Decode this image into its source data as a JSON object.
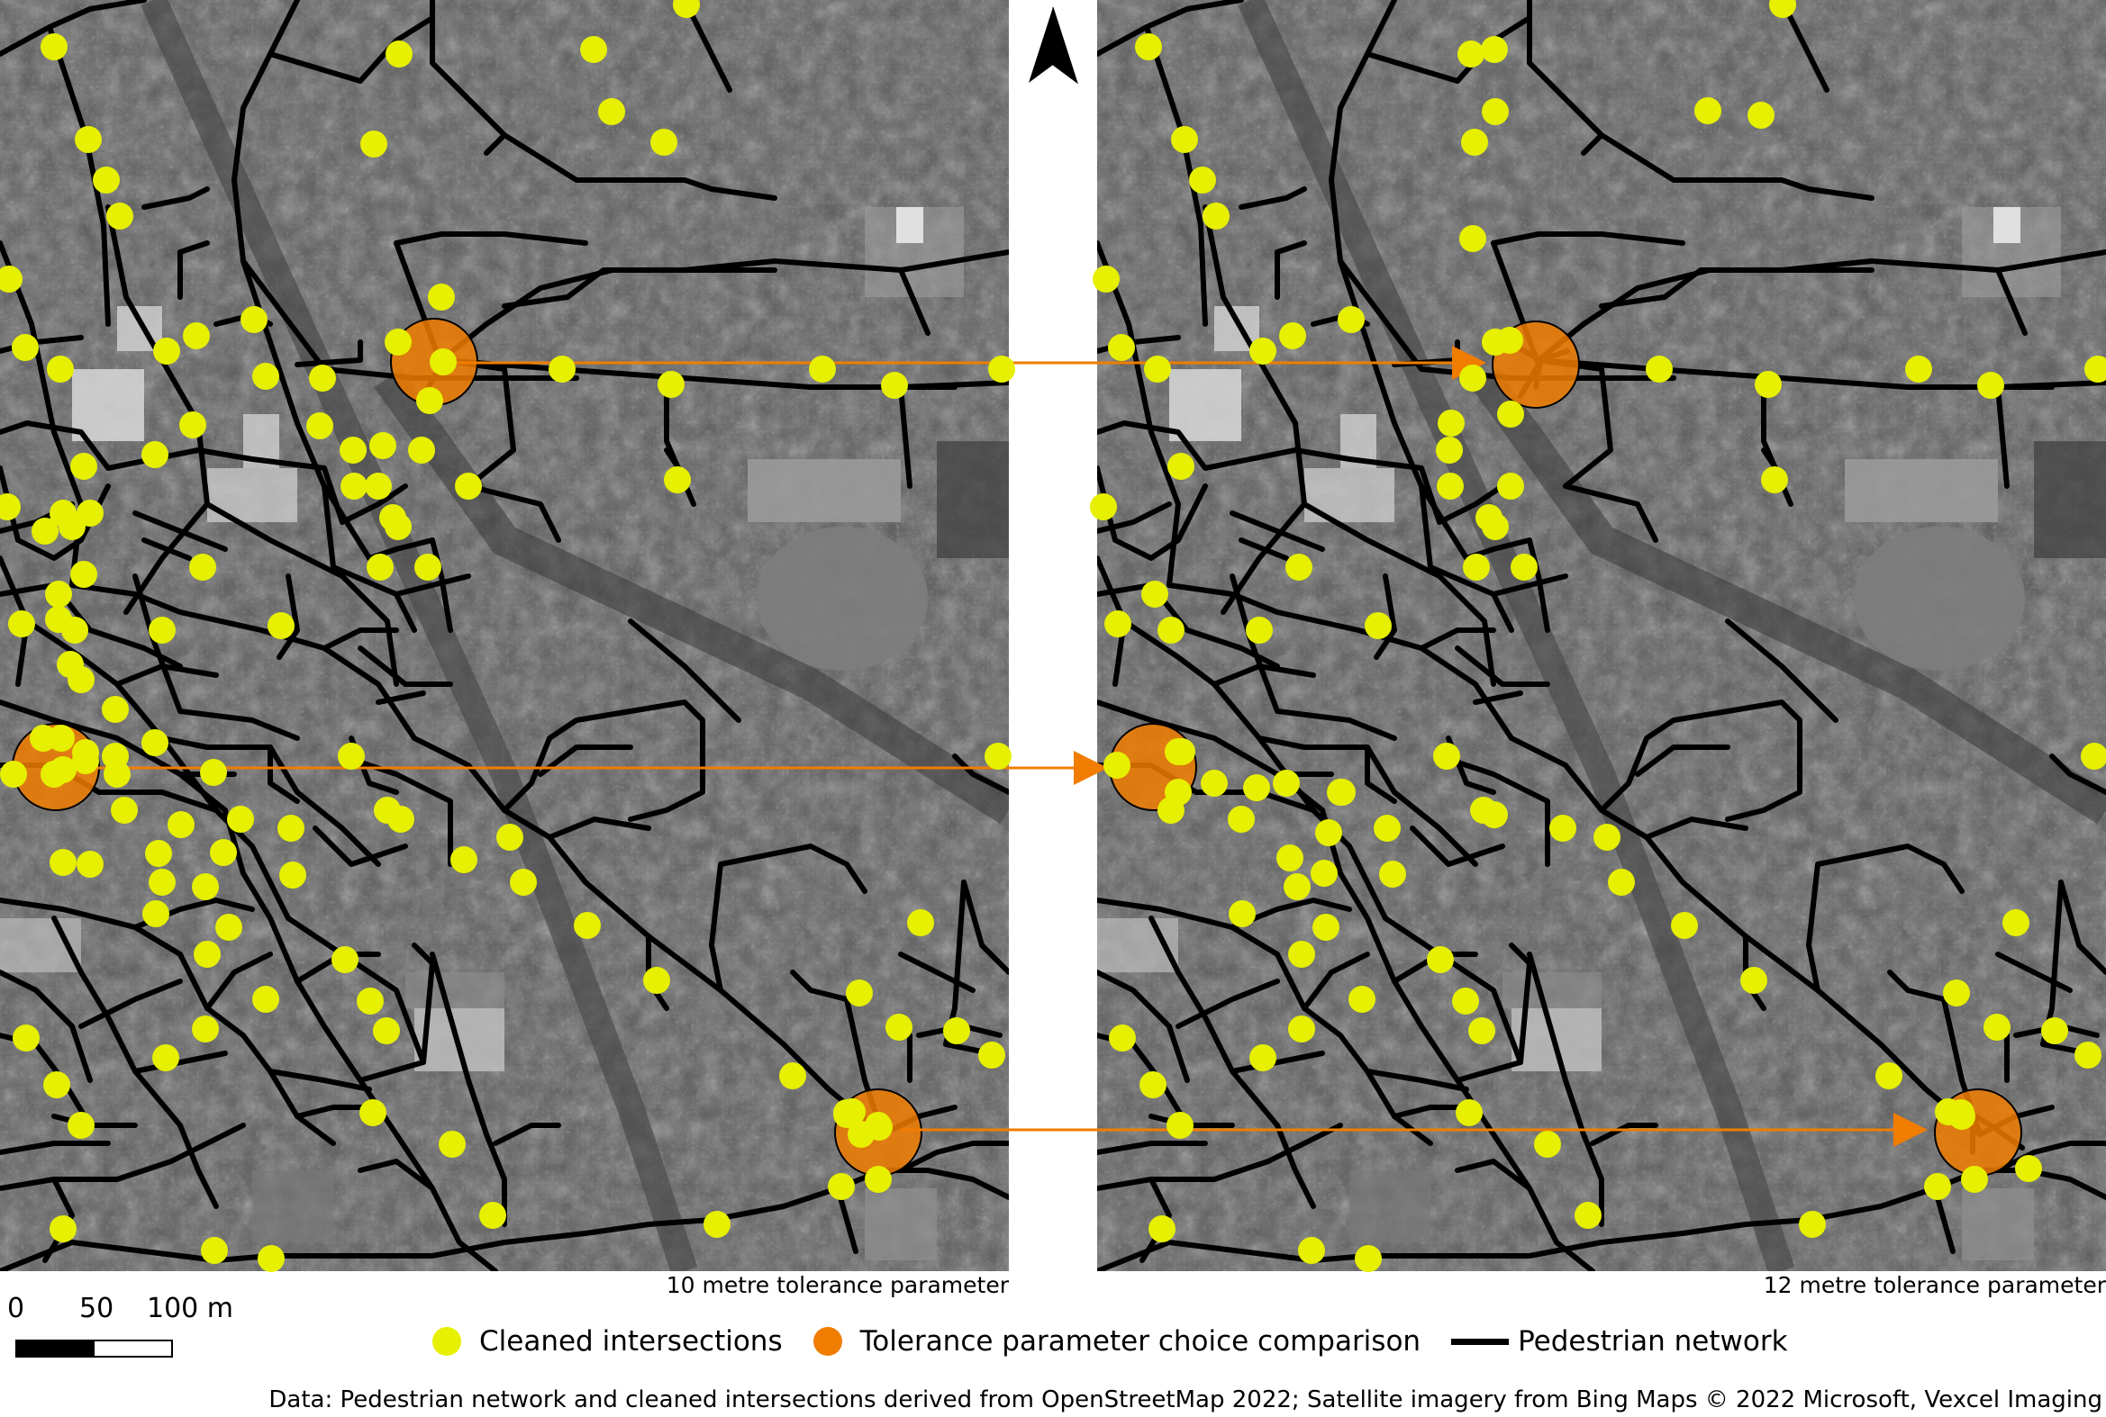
{
  "panels": {
    "left_caption": "10 metre tolerance parameter",
    "right_caption": "12 metre tolerance parameter"
  },
  "scale_bar": {
    "labels": [
      "0",
      "50",
      "100 m"
    ]
  },
  "legend": {
    "intersections": "Cleaned intersections",
    "comparison": "Tolerance parameter choice comparison",
    "network": "Pedestrian network"
  },
  "source": "Data: Pedestrian network and cleaned intersections derived from OpenStreetMap 2022; Satellite  imagery from Bing Maps © 2022 Microsoft, Vexcel Imaging",
  "north_arrow_icon": "north-arrow-icon",
  "colors": {
    "intersection": "#e6f000",
    "comparison": "#f07d00",
    "network": "#000000",
    "imagery": "#5a5a5a"
  }
}
